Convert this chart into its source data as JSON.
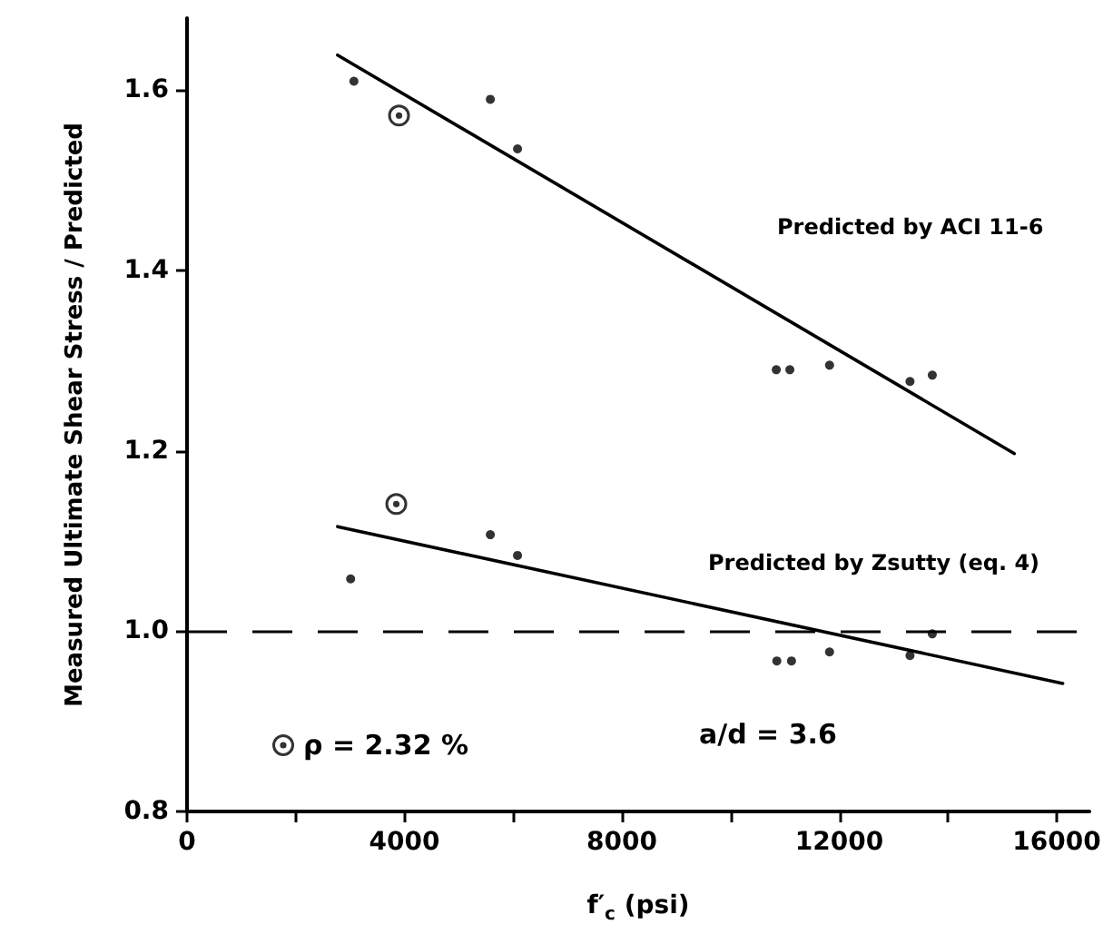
{
  "chart_data": {
    "type": "scatter",
    "xlabel": "f′$_{c}$ (psi)",
    "ylabel": "Measured Ultimate Shear Stress / Predicted",
    "xlim": [
      0,
      16600
    ],
    "ylim": [
      0.8,
      1.68
    ],
    "xticks": [
      0,
      {
        "value": 2000,
        "label": null
      },
      4000,
      {
        "value": 6000,
        "label": null
      },
      8000,
      {
        "value": 10000,
        "label": null
      },
      12000,
      {
        "value": 14000,
        "label": null
      },
      16000
    ],
    "yticks": [
      0.8,
      {
        "value": 1,
        "label": "1.0"
      },
      1.2,
      1.4,
      1.6
    ],
    "grid": false,
    "legend": "bottom left",
    "marker": "circle",
    "series": [
      {
        "color": "#000000",
        "x": [
          3070,
          5580,
          6080,
          10840,
          11090,
          11820,
          13300,
          13710
        ],
        "values": [
          1.61,
          1.59,
          1.535,
          1.29,
          1.29,
          1.295,
          1.277,
          1.284
        ]
      },
      {
        "color": "#000000",
        "x": [
          3010,
          5580,
          6080,
          10850,
          11120,
          11820,
          13300,
          13710
        ],
        "values": [
          1.058,
          1.107,
          1.084,
          0.967,
          0.967,
          0.977,
          0.973,
          0.997
        ]
      },
      {
        "name": "ρ = 2.32 %",
        "color": "#000000",
        "x": [
          3900,
          3850
        ],
        "values": [
          1.572,
          1.141
        ]
      },
      {
        "type": "line",
        "color": "#000000",
        "line_style": "solid",
        "marker": "none",
        "x": [
          2770,
          15220
        ],
        "values": [
          1.639,
          1.197
        ]
      },
      {
        "type": "line",
        "color": "#000000",
        "line_style": "solid",
        "marker": "none",
        "x": [
          2770,
          16110
        ],
        "values": [
          1.116,
          0.942
        ]
      }
    ],
    "ref_lines": [
      {
        "axis": "y",
        "value": 1,
        "color": "#000000",
        "line_style": "dashed"
      }
    ],
    "annotations": [
      "Predicted by ACI 11-6",
      "Predicted by Zsutty (eq. 4)",
      "a/d = 3.6"
    ]
  }
}
